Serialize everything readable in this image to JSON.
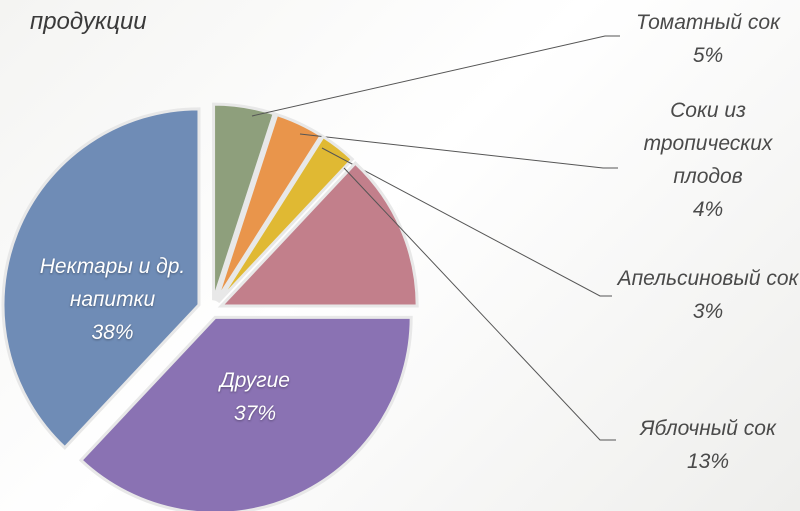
{
  "chart_data": {
    "type": "pie",
    "title": "продукции",
    "categories": [
      "Томатный сок",
      "Соки из тропических плодов",
      "Апельсиновый сок",
      "Яблочный сок",
      "Другие",
      "Нектары и др. напитки"
    ],
    "values": [
      5,
      4,
      3,
      13,
      37,
      38
    ],
    "value_labels": [
      "5%",
      "4%",
      "3%",
      "13%",
      "37%",
      "38%"
    ],
    "colors": [
      "#8e9f7c",
      "#e9954b",
      "#e0b933",
      "#c27f8b",
      "#8a72b3",
      "#6f8cb6"
    ]
  }
}
